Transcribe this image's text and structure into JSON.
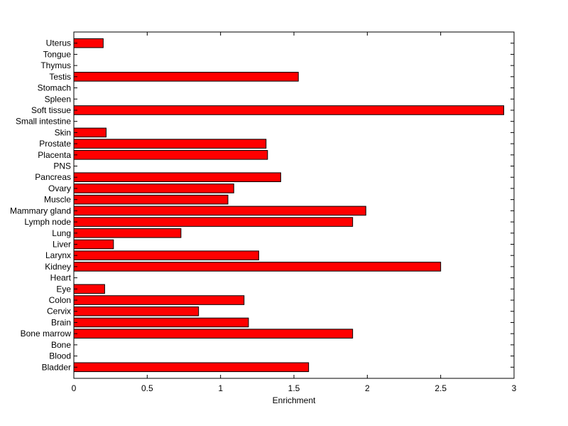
{
  "chart_data": {
    "type": "bar",
    "orientation": "horizontal",
    "title": "",
    "xlabel": "Enrichment",
    "ylabel": "",
    "xlim": [
      0,
      3
    ],
    "xticks": [
      0,
      0.5,
      1,
      1.5,
      2,
      2.5,
      3
    ],
    "xtick_labels": [
      "0",
      "0.5",
      "1",
      "1.5",
      "2",
      "2.5",
      "3"
    ],
    "grid": false,
    "legend": "none",
    "bar_color": "#ff0000",
    "bar_edge_color": "#000000",
    "categories": [
      "Bladder",
      "Blood",
      "Bone",
      "Bone marrow",
      "Brain",
      "Cervix",
      "Colon",
      "Eye",
      "Heart",
      "Kidney",
      "Larynx",
      "Liver",
      "Lung",
      "Lymph node",
      "Mammary gland",
      "Muscle",
      "Ovary",
      "Pancreas",
      "PNS",
      "Placenta",
      "Prostate",
      "Skin",
      "Small intestine",
      "Soft tissue",
      "Spleen",
      "Stomach",
      "Testis",
      "Thymus",
      "Tongue",
      "Uterus"
    ],
    "values": [
      1.6,
      0,
      0,
      1.9,
      1.19,
      0.85,
      1.16,
      0.21,
      0,
      2.5,
      1.26,
      0.27,
      0.73,
      1.9,
      1.99,
      1.05,
      1.09,
      1.41,
      0,
      1.32,
      1.31,
      0.22,
      0,
      2.93,
      0,
      0,
      1.53,
      0,
      0,
      0.2
    ]
  }
}
